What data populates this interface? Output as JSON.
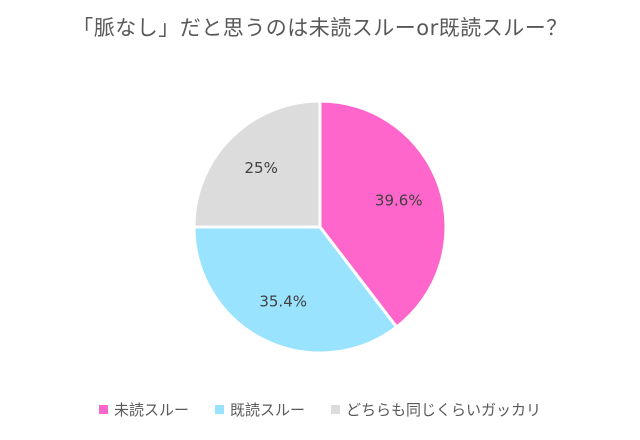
{
  "chart_data": {
    "type": "pie",
    "title": "「脈なし」だと思うのは未読スルーor既読スルー？",
    "categories": [
      "未読スルー",
      "既読スルー",
      "どちらも同じくらいガッカリ"
    ],
    "values": [
      39.6,
      35.4,
      25
    ],
    "data_labels": [
      "39.6%",
      "35.4%",
      "25%"
    ],
    "colors": [
      "#ff66cc",
      "#99e3ff",
      "#dcdcdc"
    ],
    "legend_position": "bottom",
    "start_angle": "top",
    "direction": "clockwise"
  }
}
